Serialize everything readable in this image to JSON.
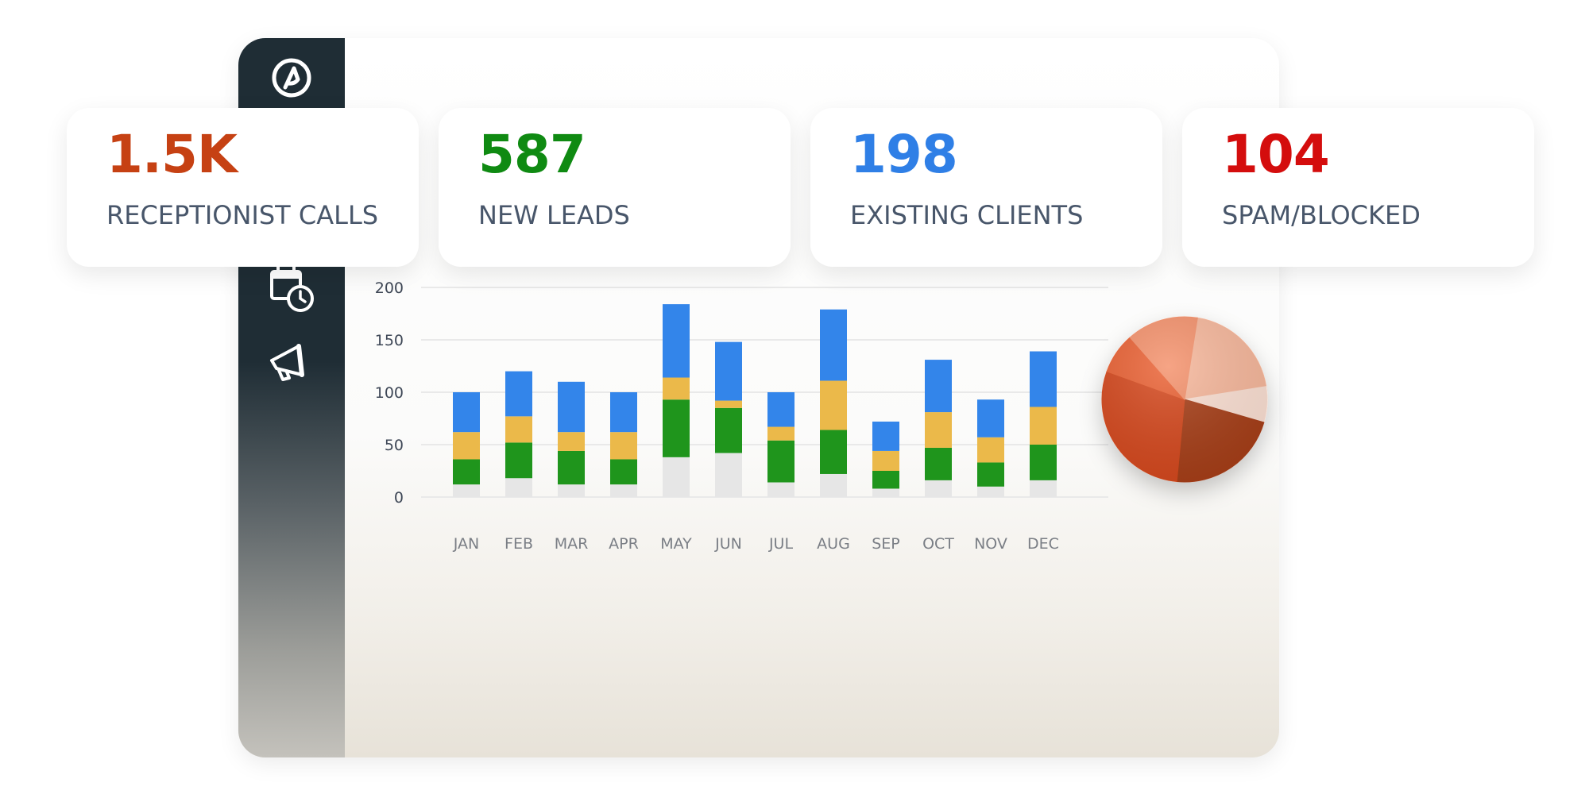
{
  "colors": {
    "receptionist_calls": "#c64113",
    "new_leads": "#0f8a12",
    "existing_clients": "#2f7fe6",
    "spam_blocked": "#d40d0d",
    "base_segment": "#e6e6e6",
    "bar_green": "#1f951c",
    "bar_yellow": "#ebb94a",
    "bar_blue": "#3385ea"
  },
  "sidebar": {
    "logo_icon": "at-logo-icon",
    "nav_icons": [
      "calendar-clock-icon",
      "megaphone-icon"
    ]
  },
  "stats": [
    {
      "value": "1.5K",
      "label": "RECEPTIONIST CALLS",
      "color": "#c64113"
    },
    {
      "value": "587",
      "label": "NEW LEADS",
      "color": "#0f8a12"
    },
    {
      "value": "198",
      "label": "EXISTING CLIENTS",
      "color": "#2f7fe6"
    },
    {
      "value": "104",
      "label": "SPAM/BLOCKED",
      "color": "#d40d0d"
    }
  ],
  "chart_data": [
    {
      "type": "bar",
      "stacked": true,
      "categories": [
        "JAN",
        "FEB",
        "MAR",
        "APR",
        "MAY",
        "JUN",
        "JUL",
        "AUG",
        "SEP",
        "OCT",
        "NOV",
        "DEC"
      ],
      "series": [
        {
          "color": "#e6e6e6",
          "values": [
            12,
            18,
            12,
            12,
            38,
            42,
            14,
            22,
            8,
            16,
            10,
            16
          ]
        },
        {
          "color": "#1f951c",
          "values": [
            24,
            34,
            32,
            24,
            55,
            43,
            40,
            42,
            17,
            31,
            23,
            34
          ]
        },
        {
          "color": "#ebb94a",
          "values": [
            26,
            25,
            18,
            26,
            21,
            7,
            13,
            47,
            19,
            34,
            24,
            36
          ]
        },
        {
          "color": "#3385ea",
          "values": [
            38,
            43,
            48,
            38,
            70,
            56,
            33,
            68,
            28,
            50,
            36,
            53
          ]
        }
      ],
      "yticks": [
        0,
        50,
        100,
        150,
        200
      ],
      "ylim": [
        0,
        200
      ],
      "grid": true,
      "title": "",
      "xlabel": "",
      "ylabel": ""
    },
    {
      "type": "pie",
      "slices": [
        {
          "value": 20,
          "color": "#f7b79b"
        },
        {
          "value": 7,
          "color": "#fce0d3"
        },
        {
          "value": 22,
          "color": "#a63c18"
        },
        {
          "value": 29,
          "color": "#d5471a"
        },
        {
          "value": 8,
          "color": "#ea6132"
        },
        {
          "value": 14,
          "color": "#f4906a"
        }
      ]
    }
  ]
}
